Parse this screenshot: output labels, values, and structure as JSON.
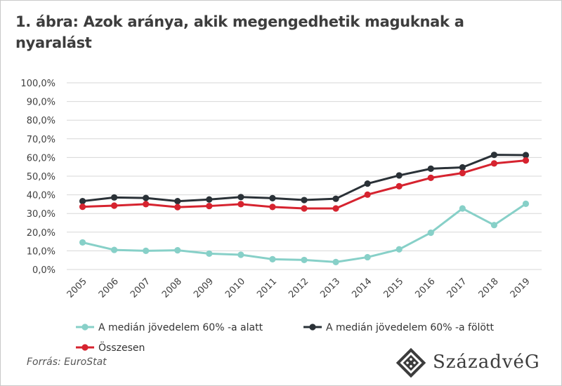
{
  "title": "1. ábra: Azok aránya, akik megengedhetik maguknak a nyaralást",
  "source": "Forrás: EuroStat",
  "brand": {
    "name": "SzázadvéG",
    "logo_icon": "diamond-dice-icon"
  },
  "colors": {
    "below": "#87d0c8",
    "above": "#2a3137",
    "total": "#d6232f",
    "grid": "#d7d7d7",
    "axis_text": "#404040"
  },
  "chart_data": {
    "type": "line",
    "title": "",
    "xlabel": "",
    "ylabel": "",
    "x": [
      "2005",
      "2006",
      "2007",
      "2008",
      "2009",
      "2010",
      "2011",
      "2012",
      "2013",
      "2014",
      "2015",
      "2016",
      "2017",
      "2018",
      "2019"
    ],
    "ylim": [
      0,
      100
    ],
    "yticks": [
      "0,0%",
      "10,0%",
      "20,0%",
      "30,0%",
      "40,0%",
      "50,0%",
      "60,0%",
      "70,0%",
      "80,0%",
      "90,0%",
      "100,0%"
    ],
    "grid": true,
    "legend_position": "bottom",
    "series": [
      {
        "name": "A medián jövedelem 60% -a alatt",
        "color": "#87d0c8",
        "values": [
          14.5,
          10.5,
          10.0,
          10.3,
          8.5,
          7.9,
          5.5,
          5.1,
          4.0,
          6.6,
          10.8,
          19.7,
          32.7,
          23.8,
          35.2
        ]
      },
      {
        "name": "A medián jövedelem 60% -a fölött",
        "color": "#2a3137",
        "values": [
          36.6,
          38.6,
          38.3,
          36.6,
          37.5,
          38.8,
          38.2,
          37.2,
          37.9,
          46.0,
          50.4,
          54.0,
          54.7,
          61.4,
          61.3
        ]
      },
      {
        "name": "Összesen",
        "color": "#d6232f",
        "values": [
          33.6,
          34.2,
          35.0,
          33.4,
          34.0,
          35.0,
          33.5,
          32.7,
          32.7,
          40.1,
          44.6,
          49.1,
          51.7,
          56.8,
          58.4
        ]
      }
    ]
  }
}
